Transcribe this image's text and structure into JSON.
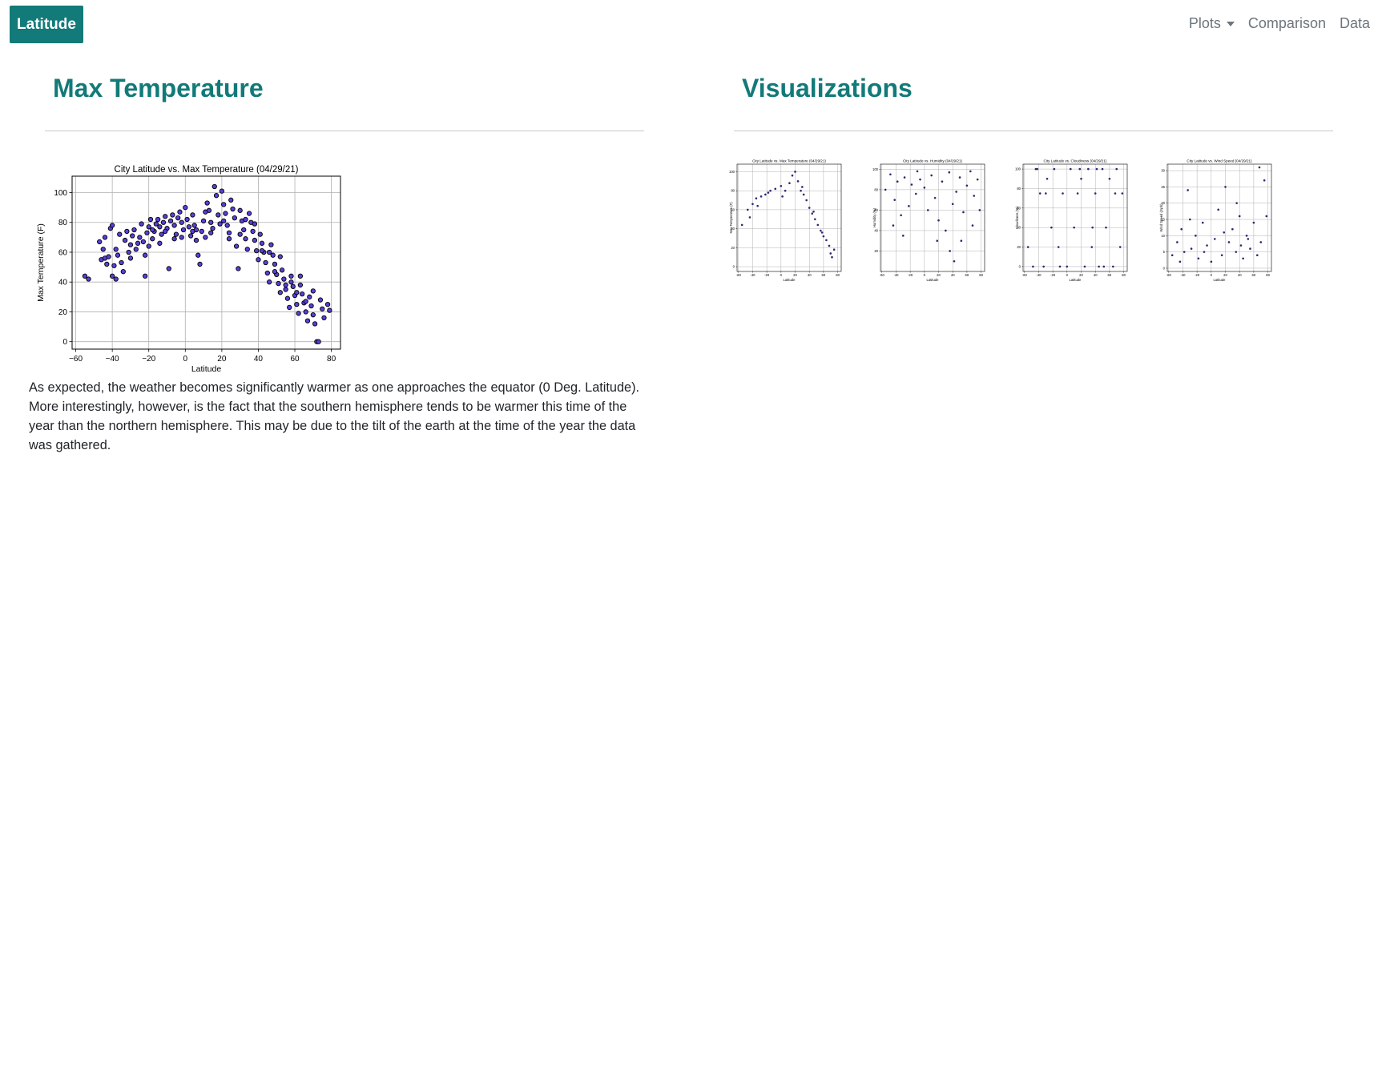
{
  "nav": {
    "brand": "Latitude",
    "plots_label": "Plots",
    "comparison_label": "Comparison",
    "data_label": "Data"
  },
  "left": {
    "title": "Max Temperature",
    "description": "As expected, the weather becomes significantly warmer as one approaches the equator (0 Deg. Latitude). More interestingly, however, is the fact that the southern hemisphere tends to be warmer this time of the year than the northern hemisphere. This may be due to the tilt of the earth at the time of the year the data was gathered."
  },
  "right": {
    "title": "Visualizations"
  },
  "colors": {
    "brand": "#127a78",
    "point_fill": "#5a3fd9",
    "point_edge": "#000000",
    "thumb_point": "#2b2a6e"
  },
  "chart_data": [
    {
      "type": "scatter",
      "title": "City Latitude vs. Max Temperature (04/29/21)",
      "xlabel": "Latitude",
      "ylabel": "Max Temperature (F)",
      "xlim": [
        -62,
        85
      ],
      "ylim": [
        -5,
        111
      ],
      "xticks": [
        -60,
        -40,
        -20,
        0,
        20,
        40,
        60,
        80
      ],
      "xtick_labels": [
        "−60",
        "−40",
        "−20",
        "0",
        "20",
        "40",
        "60",
        "80"
      ],
      "yticks": [
        0,
        20,
        40,
        60,
        80,
        100
      ],
      "grid": true,
      "points": [
        [
          -55,
          44
        ],
        [
          -53,
          42
        ],
        [
          -47,
          67
        ],
        [
          -44,
          70
        ],
        [
          -46,
          55
        ],
        [
          -44,
          56
        ],
        [
          -42,
          57
        ],
        [
          -41,
          76
        ],
        [
          -40,
          78
        ],
        [
          -40,
          44
        ],
        [
          -38,
          42
        ],
        [
          -38,
          62
        ],
        [
          -36,
          72
        ],
        [
          -35,
          53
        ],
        [
          -34,
          47
        ],
        [
          -33,
          68
        ],
        [
          -32,
          74
        ],
        [
          -31,
          60
        ],
        [
          -30,
          65
        ],
        [
          -29,
          71
        ],
        [
          -28,
          75
        ],
        [
          -27,
          62
        ],
        [
          -25,
          70
        ],
        [
          -24,
          79
        ],
        [
          -23,
          67
        ],
        [
          -22,
          44
        ],
        [
          -21,
          73
        ],
        [
          -20,
          77
        ],
        [
          -19,
          82
        ],
        [
          -18,
          69
        ],
        [
          -17,
          74
        ],
        [
          -16,
          79
        ],
        [
          -15,
          82
        ],
        [
          -14,
          77
        ],
        [
          -13,
          72
        ],
        [
          -12,
          80
        ],
        [
          -11,
          84
        ],
        [
          -10,
          76
        ],
        [
          -9,
          49
        ],
        [
          -8,
          81
        ],
        [
          -7,
          85
        ],
        [
          -6,
          78
        ],
        [
          -5,
          72
        ],
        [
          -4,
          83
        ],
        [
          -3,
          87
        ],
        [
          -2,
          80
        ],
        [
          -1,
          75
        ],
        [
          0,
          90
        ],
        [
          1,
          82
        ],
        [
          2,
          77
        ],
        [
          3,
          71
        ],
        [
          4,
          85
        ],
        [
          5,
          78
        ],
        [
          6,
          68
        ],
        [
          7,
          58
        ],
        [
          8,
          52
        ],
        [
          9,
          74
        ],
        [
          10,
          81
        ],
        [
          11,
          87
        ],
        [
          12,
          93
        ],
        [
          13,
          88
        ],
        [
          14,
          80
        ],
        [
          15,
          76
        ],
        [
          16,
          104
        ],
        [
          17,
          98
        ],
        [
          18,
          85
        ],
        [
          19,
          79
        ],
        [
          20,
          101
        ],
        [
          21,
          92
        ],
        [
          22,
          86
        ],
        [
          23,
          78
        ],
        [
          24,
          73
        ],
        [
          25,
          95
        ],
        [
          26,
          89
        ],
        [
          27,
          83
        ],
        [
          28,
          64
        ],
        [
          29,
          49
        ],
        [
          30,
          88
        ],
        [
          31,
          81
        ],
        [
          32,
          75
        ],
        [
          33,
          69
        ],
        [
          34,
          62
        ],
        [
          35,
          86
        ],
        [
          36,
          80
        ],
        [
          37,
          74
        ],
        [
          38,
          68
        ],
        [
          39,
          61
        ],
        [
          40,
          55
        ],
        [
          41,
          72
        ],
        [
          42,
          66
        ],
        [
          43,
          60
        ],
        [
          44,
          53
        ],
        [
          45,
          46
        ],
        [
          46,
          40
        ],
        [
          47,
          65
        ],
        [
          48,
          58
        ],
        [
          49,
          52
        ],
        [
          50,
          45
        ],
        [
          51,
          39
        ],
        [
          52,
          33
        ],
        [
          53,
          48
        ],
        [
          54,
          42
        ],
        [
          55,
          35
        ],
        [
          56,
          29
        ],
        [
          57,
          23
        ],
        [
          58,
          44
        ],
        [
          59,
          37
        ],
        [
          60,
          31
        ],
        [
          61,
          25
        ],
        [
          62,
          19
        ],
        [
          63,
          38
        ],
        [
          64,
          32
        ],
        [
          65,
          26
        ],
        [
          66,
          20
        ],
        [
          67,
          14
        ],
        [
          68,
          30
        ],
        [
          69,
          24
        ],
        [
          70,
          18
        ],
        [
          71,
          12
        ],
        [
          72,
          0
        ],
        [
          73,
          0
        ],
        [
          74,
          28
        ],
        [
          75,
          22
        ],
        [
          76,
          16
        ],
        [
          78,
          25
        ],
        [
          79,
          21
        ],
        [
          -45,
          62
        ],
        [
          -43,
          52
        ],
        [
          -37,
          58
        ],
        [
          -26,
          66
        ],
        [
          -22,
          58
        ],
        [
          -18,
          75
        ],
        [
          -14,
          66
        ],
        [
          -6,
          69
        ],
        [
          4,
          74
        ],
        [
          11,
          70
        ],
        [
          24,
          69
        ],
        [
          33,
          82
        ],
        [
          42,
          61
        ],
        [
          49,
          47
        ],
        [
          55,
          38
        ],
        [
          61,
          33
        ],
        [
          66,
          27
        ],
        [
          70,
          34
        ],
        [
          63,
          44
        ],
        [
          58,
          40
        ],
        [
          52,
          57
        ],
        [
          46,
          60
        ],
        [
          38,
          79
        ],
        [
          30,
          72
        ],
        [
          21,
          81
        ],
        [
          14,
          73
        ],
        [
          6,
          75
        ],
        [
          -2,
          70
        ],
        [
          -11,
          74
        ],
        [
          -20,
          64
        ],
        [
          -30,
          56
        ],
        [
          -39,
          51
        ]
      ]
    },
    {
      "type": "scatter",
      "title": "City Latitude vs. Max Temperature (04/29/21)",
      "xlabel": "Latitude",
      "ylabel": "Max Temperature (F)",
      "xlim": [
        -62,
        85
      ],
      "ylim": [
        -5,
        108
      ],
      "xticks": [
        -60,
        -40,
        -20,
        0,
        20,
        40,
        60,
        80
      ],
      "yticks": [
        0,
        20,
        40,
        60,
        80,
        100
      ],
      "grid": true,
      "points": [
        [
          -55,
          44
        ],
        [
          -47,
          60
        ],
        [
          -40,
          66
        ],
        [
          -35,
          72
        ],
        [
          -28,
          74
        ],
        [
          -22,
          76
        ],
        [
          -15,
          80
        ],
        [
          -8,
          82
        ],
        [
          0,
          85
        ],
        [
          6,
          80
        ],
        [
          12,
          88
        ],
        [
          16,
          96
        ],
        [
          20,
          100
        ],
        [
          24,
          90
        ],
        [
          28,
          80
        ],
        [
          32,
          76
        ],
        [
          36,
          70
        ],
        [
          40,
          62
        ],
        [
          44,
          56
        ],
        [
          48,
          50
        ],
        [
          52,
          44
        ],
        [
          56,
          38
        ],
        [
          60,
          32
        ],
        [
          64,
          28
        ],
        [
          68,
          22
        ],
        [
          72,
          10
        ],
        [
          75,
          18
        ],
        [
          -44,
          52
        ],
        [
          -33,
          64
        ],
        [
          -18,
          78
        ],
        [
          2,
          74
        ],
        [
          30,
          84
        ],
        [
          46,
          58
        ],
        [
          58,
          36
        ],
        [
          70,
          14
        ]
      ]
    },
    {
      "type": "scatter",
      "title": "City Latitude vs. Humidity (04/29/21)",
      "xlabel": "Latitude",
      "ylabel": "Humidity (%)",
      "xlim": [
        -62,
        85
      ],
      "ylim": [
        0,
        105
      ],
      "xticks": [
        -60,
        -40,
        -20,
        0,
        20,
        40,
        60,
        80
      ],
      "yticks": [
        20,
        40,
        60,
        80,
        100
      ],
      "grid": true,
      "points": [
        [
          -55,
          80
        ],
        [
          -48,
          95
        ],
        [
          -42,
          70
        ],
        [
          -38,
          88
        ],
        [
          -33,
          55
        ],
        [
          -28,
          92
        ],
        [
          -22,
          64
        ],
        [
          -18,
          85
        ],
        [
          -12,
          76
        ],
        [
          -6,
          90
        ],
        [
          0,
          82
        ],
        [
          5,
          60
        ],
        [
          10,
          94
        ],
        [
          15,
          72
        ],
        [
          20,
          50
        ],
        [
          25,
          88
        ],
        [
          30,
          40
        ],
        [
          35,
          97
        ],
        [
          40,
          66
        ],
        [
          45,
          78
        ],
        [
          50,
          92
        ],
        [
          55,
          58
        ],
        [
          60,
          84
        ],
        [
          65,
          98
        ],
        [
          70,
          74
        ],
        [
          75,
          90
        ],
        [
          78,
          60
        ],
        [
          -44,
          45
        ],
        [
          -30,
          35
        ],
        [
          -10,
          98
        ],
        [
          18,
          30
        ],
        [
          36,
          20
        ],
        [
          42,
          10
        ],
        [
          52,
          30
        ],
        [
          68,
          45
        ]
      ]
    },
    {
      "type": "scatter",
      "title": "City Latitude vs. Cloudiness (04/29/21)",
      "xlabel": "Latitude",
      "ylabel": "Cloudiness (%)",
      "xlim": [
        -62,
        85
      ],
      "ylim": [
        -5,
        105
      ],
      "xticks": [
        -60,
        -40,
        -20,
        0,
        20,
        40,
        60,
        80
      ],
      "yticks": [
        0,
        20,
        40,
        60,
        80,
        100
      ],
      "grid": true,
      "points": [
        [
          -55,
          20
        ],
        [
          -48,
          0
        ],
        [
          -42,
          100
        ],
        [
          -38,
          75
        ],
        [
          -33,
          0
        ],
        [
          -28,
          90
        ],
        [
          -22,
          40
        ],
        [
          -18,
          100
        ],
        [
          -12,
          20
        ],
        [
          -6,
          75
        ],
        [
          0,
          0
        ],
        [
          5,
          100
        ],
        [
          10,
          40
        ],
        [
          15,
          75
        ],
        [
          20,
          90
        ],
        [
          25,
          0
        ],
        [
          30,
          100
        ],
        [
          35,
          20
        ],
        [
          40,
          75
        ],
        [
          45,
          0
        ],
        [
          50,
          100
        ],
        [
          55,
          40
        ],
        [
          60,
          90
        ],
        [
          65,
          0
        ],
        [
          70,
          100
        ],
        [
          75,
          20
        ],
        [
          78,
          75
        ],
        [
          -44,
          100
        ],
        [
          -30,
          75
        ],
        [
          -10,
          0
        ],
        [
          18,
          100
        ],
        [
          36,
          40
        ],
        [
          42,
          100
        ],
        [
          52,
          0
        ],
        [
          68,
          75
        ]
      ]
    },
    {
      "type": "scatter",
      "title": "City Latitude vs. Wind Speed (04/29/21)",
      "xlabel": "Latitude",
      "ylabel": "Wind Speed (mph)",
      "xlim": [
        -62,
        85
      ],
      "ylim": [
        -1,
        32
      ],
      "xticks": [
        -60,
        -40,
        -20,
        0,
        20,
        40,
        60,
        80
      ],
      "yticks": [
        0,
        5,
        10,
        15,
        20,
        25,
        30
      ],
      "grid": true,
      "points": [
        [
          -55,
          4
        ],
        [
          -48,
          8
        ],
        [
          -42,
          12
        ],
        [
          -38,
          5
        ],
        [
          -33,
          24
        ],
        [
          -28,
          6
        ],
        [
          -22,
          10
        ],
        [
          -18,
          3
        ],
        [
          -12,
          14
        ],
        [
          -6,
          7
        ],
        [
          0,
          2
        ],
        [
          5,
          9
        ],
        [
          10,
          18
        ],
        [
          15,
          4
        ],
        [
          20,
          25
        ],
        [
          25,
          8
        ],
        [
          30,
          12
        ],
        [
          35,
          5
        ],
        [
          40,
          16
        ],
        [
          45,
          3
        ],
        [
          50,
          10
        ],
        [
          55,
          6
        ],
        [
          60,
          14
        ],
        [
          65,
          4
        ],
        [
          70,
          8
        ],
        [
          75,
          27
        ],
        [
          78,
          16
        ],
        [
          -44,
          2
        ],
        [
          -30,
          15
        ],
        [
          -10,
          5
        ],
        [
          18,
          11
        ],
        [
          36,
          20
        ],
        [
          42,
          7
        ],
        [
          52,
          9
        ],
        [
          68,
          31
        ]
      ]
    }
  ]
}
